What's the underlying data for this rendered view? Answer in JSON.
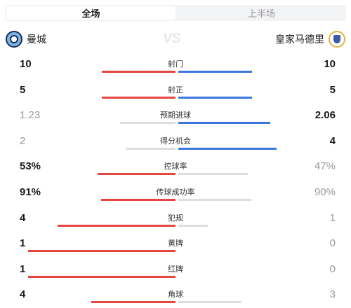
{
  "tabs": [
    {
      "label": "全场",
      "active": true
    },
    {
      "label": "上半场",
      "active": false
    }
  ],
  "home_team": {
    "name": "曼城",
    "badge": "man-city-crest-icon"
  },
  "away_team": {
    "name": "皇家马德里",
    "badge": "real-madrid-crest-icon"
  },
  "vs_label": "VS",
  "colors": {
    "home": "#e5473f",
    "away": "#3a78e0",
    "neutral": "#dcdde1"
  },
  "stats": [
    {
      "label": "射门",
      "home": "10",
      "away": "10",
      "home_value": 10,
      "away_value": 10,
      "home_lead": true,
      "away_lead": true
    },
    {
      "label": "射正",
      "home": "5",
      "away": "5",
      "home_value": 5,
      "away_value": 5,
      "home_lead": true,
      "away_lead": true
    },
    {
      "label": "预期进球",
      "home": "1.23",
      "away": "2.06",
      "home_value": 1.23,
      "away_value": 2.06,
      "home_lead": false,
      "away_lead": true
    },
    {
      "label": "得分机会",
      "home": "2",
      "away": "4",
      "home_value": 2,
      "away_value": 4,
      "home_lead": false,
      "away_lead": true
    },
    {
      "label": "控球率",
      "home": "53%",
      "away": "47%",
      "home_value": 53,
      "away_value": 47,
      "home_lead": true,
      "away_lead": false
    },
    {
      "label": "传球成功率",
      "home": "91%",
      "away": "90%",
      "home_value": 91,
      "away_value": 90,
      "home_lead": true,
      "away_lead": false
    },
    {
      "label": "犯规",
      "home": "4",
      "away": "1",
      "home_value": 4,
      "away_value": 1,
      "home_lead": true,
      "away_lead": false
    },
    {
      "label": "黄牌",
      "home": "1",
      "away": "0",
      "home_value": 1,
      "away_value": 0,
      "home_lead": true,
      "away_lead": false
    },
    {
      "label": "红牌",
      "home": "1",
      "away": "0",
      "home_value": 1,
      "away_value": 0,
      "home_lead": true,
      "away_lead": false
    },
    {
      "label": "角球",
      "home": "4",
      "away": "3",
      "home_value": 4,
      "away_value": 3,
      "home_lead": true,
      "away_lead": false
    }
  ]
}
